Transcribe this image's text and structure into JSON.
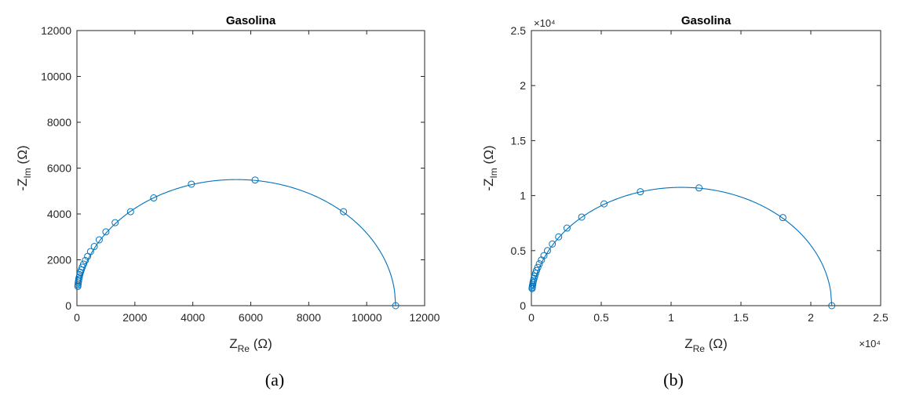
{
  "colors": {
    "series": "#0072BD",
    "axis": "#262626"
  },
  "chart_data": [
    {
      "type": "line",
      "panel": "a",
      "title": "Gasolina",
      "caption": "(a)",
      "xlabel": {
        "main": "Z",
        "sub": "Re",
        "unit": " (Ω)"
      },
      "ylabel": {
        "main": "-Z",
        "sub": "Im",
        "unit": " (Ω)"
      },
      "xlim": [
        0,
        12000
      ],
      "ylim": [
        0,
        12000
      ],
      "xticks": [
        0,
        2000,
        4000,
        6000,
        8000,
        10000,
        12000
      ],
      "yticks": [
        0,
        2000,
        4000,
        6000,
        8000,
        10000,
        12000
      ],
      "xtick_labels": [
        "0",
        "2000",
        "4000",
        "6000",
        "8000",
        "10000",
        "12000"
      ],
      "ytick_labels": [
        "0",
        "2000",
        "4000",
        "6000",
        "8000",
        "10000",
        "12000"
      ],
      "x_multiplier": "",
      "y_multiplier": "",
      "grid": false,
      "box": true,
      "curve": {
        "center": 5500,
        "radius": 5500,
        "y_min": 800,
        "x_max": 11000
      },
      "markers": {
        "x": [
          11000,
          9200,
          6150,
          3950,
          2650,
          1850,
          1320,
          1000,
          770,
          600,
          470,
          370,
          290,
          230,
          185,
          150,
          120,
          100,
          80,
          65,
          55,
          45,
          38,
          32
        ],
        "y": [
          0,
          4100,
          5480,
          5300,
          4700,
          4100,
          3620,
          3220,
          2870,
          2580,
          2360,
          2150,
          1970,
          1810,
          1680,
          1560,
          1450,
          1350,
          1250,
          1160,
          1070,
          990,
          910,
          840
        ]
      }
    },
    {
      "type": "line",
      "panel": "b",
      "title": "Gasolina",
      "caption": "(b)",
      "xlabel": {
        "main": "Z",
        "sub": "Re",
        "unit": " (Ω)"
      },
      "ylabel": {
        "main": "-Z",
        "sub": "Im",
        "unit": " (Ω)"
      },
      "xlim": [
        0,
        25000
      ],
      "ylim": [
        0,
        25000
      ],
      "xticks": [
        0,
        5000,
        10000,
        15000,
        20000,
        25000
      ],
      "yticks": [
        0,
        5000,
        10000,
        15000,
        20000,
        25000
      ],
      "xtick_labels": [
        "0",
        "0.5",
        "1",
        "1.5",
        "2",
        "2.5"
      ],
      "ytick_labels": [
        "0",
        "0.5",
        "1",
        "1.5",
        "2",
        "2.5"
      ],
      "x_multiplier": "×10⁴",
      "y_multiplier": "×10⁴",
      "grid": false,
      "box": true,
      "curve": {
        "center": 10750,
        "radius": 10750,
        "y_min": 1500,
        "x_max": 21500
      },
      "markers": {
        "x": [
          21500,
          18000,
          12000,
          7800,
          5200,
          3600,
          2550,
          1950,
          1500,
          1150,
          900,
          720,
          570,
          460,
          370,
          300,
          240,
          190,
          150,
          120,
          95,
          75,
          60,
          50
        ],
        "y": [
          0,
          8000,
          10700,
          10350,
          9250,
          8050,
          7050,
          6250,
          5600,
          5000,
          4550,
          4150,
          3800,
          3480,
          3200,
          2950,
          2700,
          2480,
          2280,
          2100,
          1930,
          1790,
          1650,
          1550
        ]
      }
    }
  ]
}
